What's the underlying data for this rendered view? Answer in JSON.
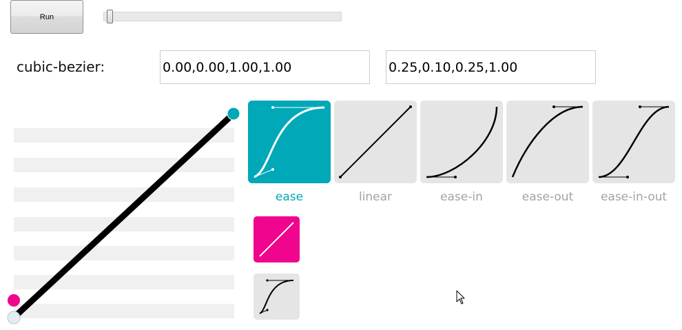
{
  "toolbar": {
    "run_label": "Run"
  },
  "slider": {
    "value": 0.01
  },
  "bezier": {
    "label": "cubic-bezier:",
    "input_a": "0.00,0.00,1.00,1.00",
    "input_b": "0.25,0.10,0.25,1.00"
  },
  "presets": [
    {
      "label": "ease",
      "selected": true
    },
    {
      "label": "linear",
      "selected": false
    },
    {
      "label": "ease-in",
      "selected": false
    },
    {
      "label": "ease-out",
      "selected": false
    },
    {
      "label": "ease-in-out",
      "selected": false
    }
  ],
  "colors": {
    "accent": "#00a8b8",
    "pink": "#f0058f",
    "tile": "#e5e5e5",
    "stripe": "#f0f0f0"
  }
}
